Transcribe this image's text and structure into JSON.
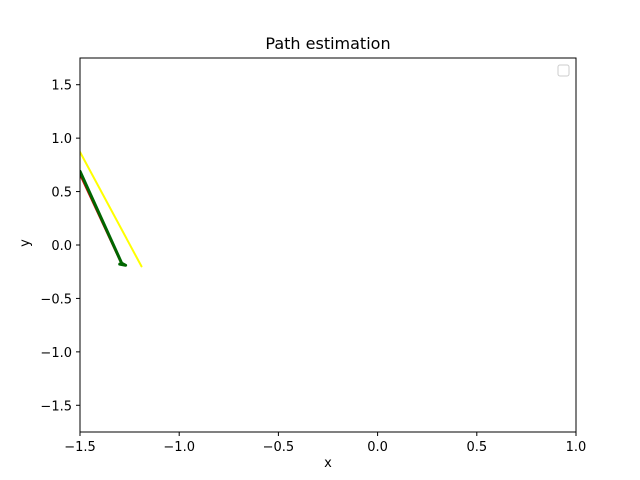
{
  "chart_data": {
    "type": "line",
    "title": "Path estimation",
    "xlabel": "x",
    "ylabel": "y",
    "xlim": [
      -1.5,
      1.0
    ],
    "ylim": [
      -1.75,
      1.75
    ],
    "xticks": [
      -1.5,
      -1.0,
      -0.5,
      0.0,
      0.5,
      1.0
    ],
    "yticks": [
      -1.5,
      -1.0,
      -0.5,
      0.0,
      0.5,
      1.0,
      1.5
    ],
    "grid": false,
    "legend": {
      "placement": "top-right",
      "entries": []
    },
    "series": [
      {
        "color": "#ffff00",
        "width": 2,
        "x": [
          -1.5,
          -1.19
        ],
        "y": [
          0.87,
          -0.2
        ]
      },
      {
        "color": "#cc0000",
        "width": 2,
        "x": [
          -1.5,
          -1.29
        ],
        "y": [
          0.66,
          -0.18
        ]
      },
      {
        "color": "#006600",
        "width": 3,
        "x": [
          -1.5,
          -1.29,
          -1.27,
          -1.3
        ],
        "y": [
          0.69,
          -0.17,
          -0.19,
          -0.18
        ]
      }
    ]
  }
}
